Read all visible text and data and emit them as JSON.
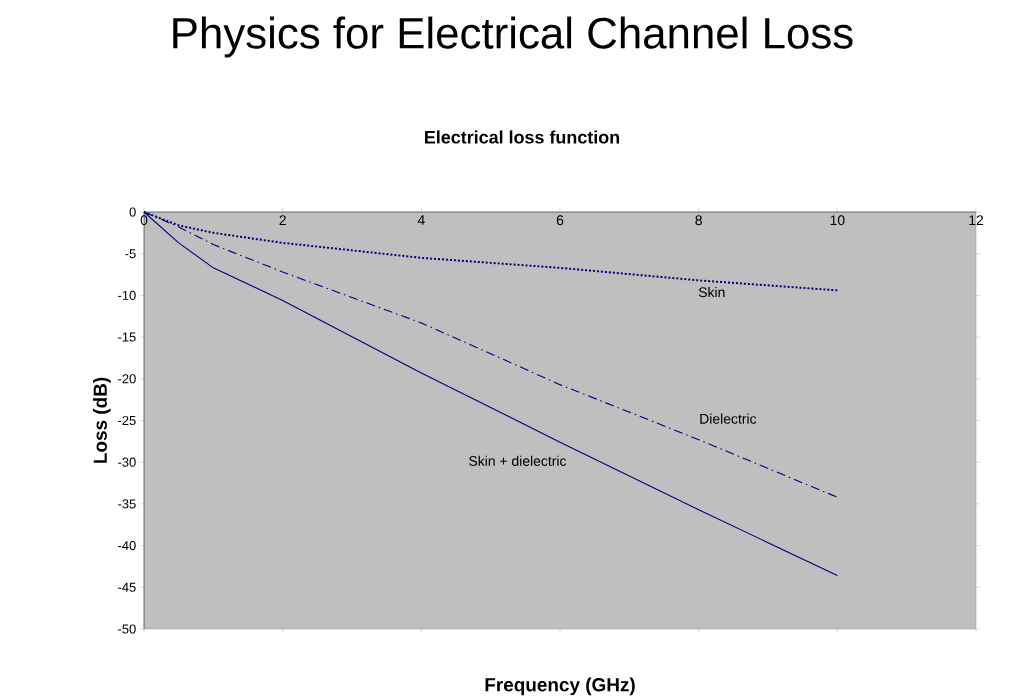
{
  "chart_data": {
    "type": "line",
    "title": "Physics for Electrical Channel Loss",
    "subtitle": "Electrical loss function",
    "xlabel": "Frequency (GHz)",
    "ylabel": "Loss (dB)",
    "x": [
      0,
      0.5,
      1,
      2,
      4,
      6,
      8,
      10
    ],
    "series": [
      {
        "name": "Skin",
        "color": "#000080",
        "line_style": "dotted",
        "values": [
          0,
          -1.6,
          -2.5,
          -3.7,
          -5.5,
          -6.7,
          -8.2,
          -9.4
        ]
      },
      {
        "name": "Dielectric",
        "color": "#000080",
        "line_style": "dashed",
        "values": [
          0,
          -1.8,
          -3.9,
          -7.2,
          -13.3,
          -20.7,
          -27.3,
          -34.2
        ]
      },
      {
        "name": "Skin + dielectric",
        "color": "#000080",
        "line_style": "solid",
        "values": [
          0,
          -3.7,
          -6.7,
          -10.6,
          -19.3,
          -27.6,
          -35.7,
          -43.6
        ]
      }
    ],
    "xlim": [
      0,
      12
    ],
    "xticks": [
      0,
      2,
      4,
      6,
      8,
      10,
      12
    ],
    "ylim": [
      -50,
      0
    ],
    "yticks": [
      -50,
      -45,
      -40,
      -35,
      -30,
      -25,
      -20,
      -15,
      -10,
      -5,
      0
    ],
    "marker": "none"
  }
}
